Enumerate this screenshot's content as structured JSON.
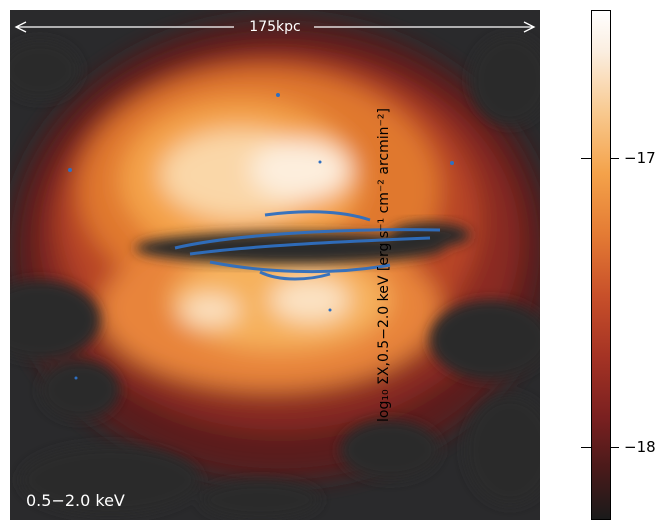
{
  "image": {
    "scale_bar_label": "175kpc",
    "band_label": "0.5−2.0 keV",
    "colors": {
      "background_dark": "#2a2a2c",
      "emission_dim": "#7a2020",
      "emission_mid": "#c8502a",
      "emission_bright": "#f4a24a",
      "emission_peak": "#fbeee0",
      "disk_overlay": "#2f6fc0"
    }
  },
  "colorbar": {
    "axis_label": "log₁₀ ΣX,0.5−2.0 keV [erg s⁻¹ cm⁻² arcmin⁻²]",
    "ticks": [
      {
        "label": "−17"
      },
      {
        "label": "−18"
      }
    ]
  }
}
